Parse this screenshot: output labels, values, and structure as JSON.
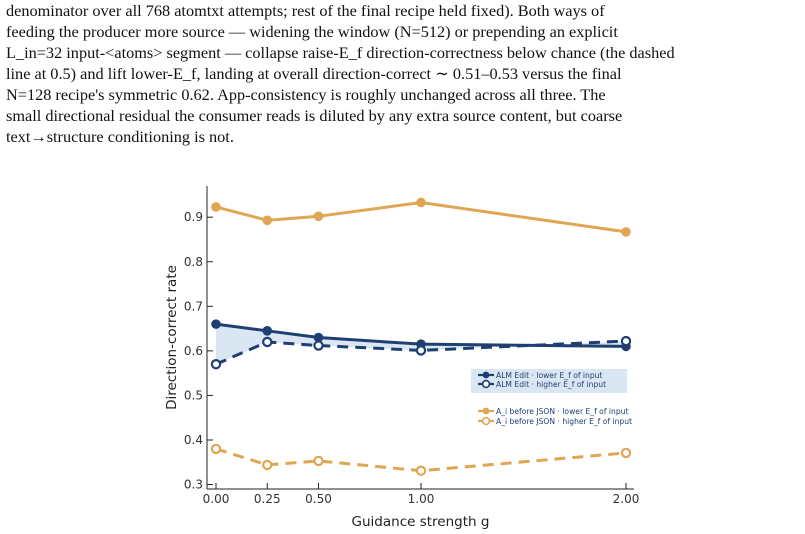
{
  "paragraph": {
    "lines": [
      "denominator over all 768 atomtxt attempts; rest of the final recipe held fixed). Both ways of",
      "feeding the producer more source — widening the window (N=512) or prepending an explicit",
      "L_in=32 input-<atoms> segment — collapse raise-E_f direction-correctness below chance (the dashed",
      "line at 0.5) and lift lower-E_f, landing at overall direction-correct ∼ 0.51–0.53 versus the final",
      "N=128 recipe's symmetric 0.62. App-consistency is roughly unchanged across all three. The",
      "small directional residual the consumer reads is diluted by any extra source content, but coarse",
      "text→structure conditioning is not."
    ]
  },
  "chart_data": {
    "type": "line",
    "xlabel": "Guidance strength g",
    "ylabel": "Direction-correct rate",
    "x": [
      0.0,
      0.25,
      0.5,
      1.0,
      2.0
    ],
    "x_tick_labels": [
      "0.00",
      "0.25",
      "0.50",
      "1.00",
      "2.00"
    ],
    "ylim": [
      0.29,
      0.97
    ],
    "y_ticks": [
      0.3,
      0.4,
      0.5,
      0.6,
      0.7,
      0.8,
      0.9
    ],
    "y_tick_labels": [
      "0.3",
      "0.4",
      "0.5",
      "0.6",
      "0.7",
      "0.8",
      "0.9"
    ],
    "grid": false,
    "legend_position": "right",
    "series": [
      {
        "name": "ALM Edit · lower E_f of input",
        "values": [
          0.66,
          0.645,
          0.63,
          0.615,
          0.61
        ],
        "color": "#1f3f73",
        "style": "solid",
        "marker": "filled"
      },
      {
        "name": "ALM Edit · higher E_f of input",
        "values": [
          0.57,
          0.62,
          0.612,
          0.601,
          0.622
        ],
        "color": "#1f3f73",
        "style": "dashed",
        "marker": "open"
      },
      {
        "name": "A_i before JSON · lower E_f of input",
        "values": [
          0.923,
          0.893,
          0.902,
          0.933,
          0.867
        ],
        "color": "#e0a653",
        "style": "solid",
        "marker": "filled"
      },
      {
        "name": "A_i before JSON · higher E_f of input",
        "values": [
          0.38,
          0.344,
          0.353,
          0.331,
          0.371
        ],
        "color": "#e0a653",
        "style": "dashed",
        "marker": "open"
      }
    ],
    "shaded_gap": {
      "between_series": [
        0,
        1
      ],
      "color": "#dbe6f3"
    },
    "legend_box_color": "#dbe6f3"
  }
}
